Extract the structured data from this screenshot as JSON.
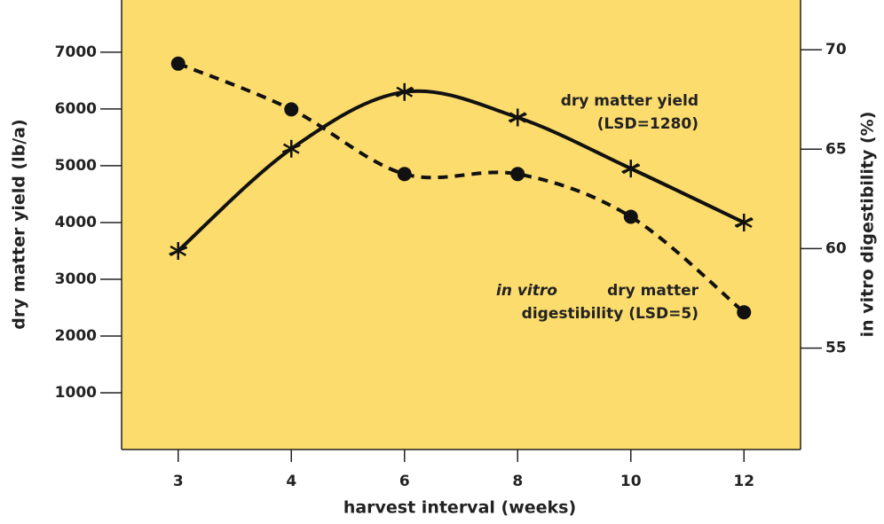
{
  "chart_data": {
    "type": "line",
    "xlabel": "harvest interval (weeks)",
    "ylabel": "dry matter yield (lb/a)",
    "y2label": "in vitro digestibility (%)",
    "categories": [
      "3",
      "4",
      "6",
      "8",
      "10",
      "12"
    ],
    "series": [
      {
        "name": "dry matter yield",
        "color": "#111111",
        "marker": "star",
        "dashed": false,
        "values": [
          3500,
          5300,
          6300,
          5850,
          4950,
          4000
        ]
      },
      {
        "name": "in vitro dry matter digestibility",
        "color": "#111111",
        "marker": "circle",
        "dashed": true,
        "axis": "y2",
        "values": [
          69.3,
          67.0,
          63.75,
          63.75,
          61.6,
          56.8
        ]
      }
    ],
    "annotations": [
      "dry matter yield",
      "(LSD=1280)",
      "in vitro",
      "dry matter",
      "digestibility (LSD=5)"
    ],
    "ylim": [
      0,
      7920
    ],
    "yticks": [
      1000,
      2000,
      3000,
      4000,
      5000,
      6000,
      7000
    ],
    "y2lim": [
      49.9,
      72.5
    ],
    "y2ticks": [
      55,
      60,
      65,
      70
    ],
    "background": "#fcdc6c"
  }
}
